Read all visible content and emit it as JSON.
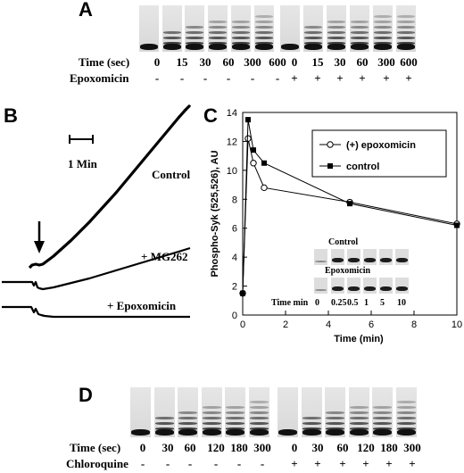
{
  "panelA": {
    "letter": "A",
    "row_labels": [
      "Time (sec)",
      "Epoxomicin"
    ],
    "times": [
      "0",
      "15",
      "30",
      "60",
      "300",
      "600",
      "0",
      "15",
      "30",
      "60",
      "300",
      "600"
    ],
    "treatment": [
      "-",
      "-",
      "-",
      "-",
      "-",
      "-",
      "+",
      "+",
      "+",
      "+",
      "+",
      "+"
    ]
  },
  "panelB": {
    "letter": "B",
    "scale_label": "1 Min",
    "traces": [
      "Control",
      "+ MG262",
      "+ Epoxomicin"
    ]
  },
  "panelC": {
    "letter": "C",
    "inset": {
      "labels": [
        "Control",
        "Epoxomicin"
      ],
      "time_label": "Time min",
      "times": [
        "0",
        "0.25",
        "0.5",
        "1",
        "5",
        "10"
      ]
    }
  },
  "panelD": {
    "letter": "D",
    "row_labels": [
      "Time (sec)",
      "Chloroquine"
    ],
    "times": [
      "0",
      "30",
      "60",
      "120",
      "180",
      "300",
      "0",
      "30",
      "60",
      "120",
      "180",
      "300"
    ],
    "treatment": [
      "-",
      "-",
      "-",
      "-",
      "-",
      "-",
      "+",
      "+",
      "+",
      "+",
      "+",
      "+"
    ]
  },
  "chart_data": {
    "type": "line",
    "xlabel": "Time (min)",
    "ylabel": "Phospho-Syk (525,526), AU",
    "xlim": [
      0,
      10
    ],
    "ylim": [
      0,
      14
    ],
    "xticks": [
      0,
      2,
      4,
      6,
      8,
      10
    ],
    "yticks": [
      0,
      2,
      4,
      6,
      8,
      10,
      12,
      14
    ],
    "legend_position": "top-right",
    "series": [
      {
        "name": "(+) epoxomicin",
        "marker": "open-circle",
        "x": [
          0,
          0.25,
          0.5,
          1,
          5,
          10
        ],
        "y": [
          1.5,
          12.2,
          10.5,
          8.8,
          7.8,
          6.3
        ]
      },
      {
        "name": "control",
        "marker": "filled-square",
        "x": [
          0,
          0.25,
          0.5,
          1,
          5,
          10
        ],
        "y": [
          1.5,
          13.5,
          11.4,
          10.5,
          7.7,
          6.2
        ]
      }
    ]
  }
}
